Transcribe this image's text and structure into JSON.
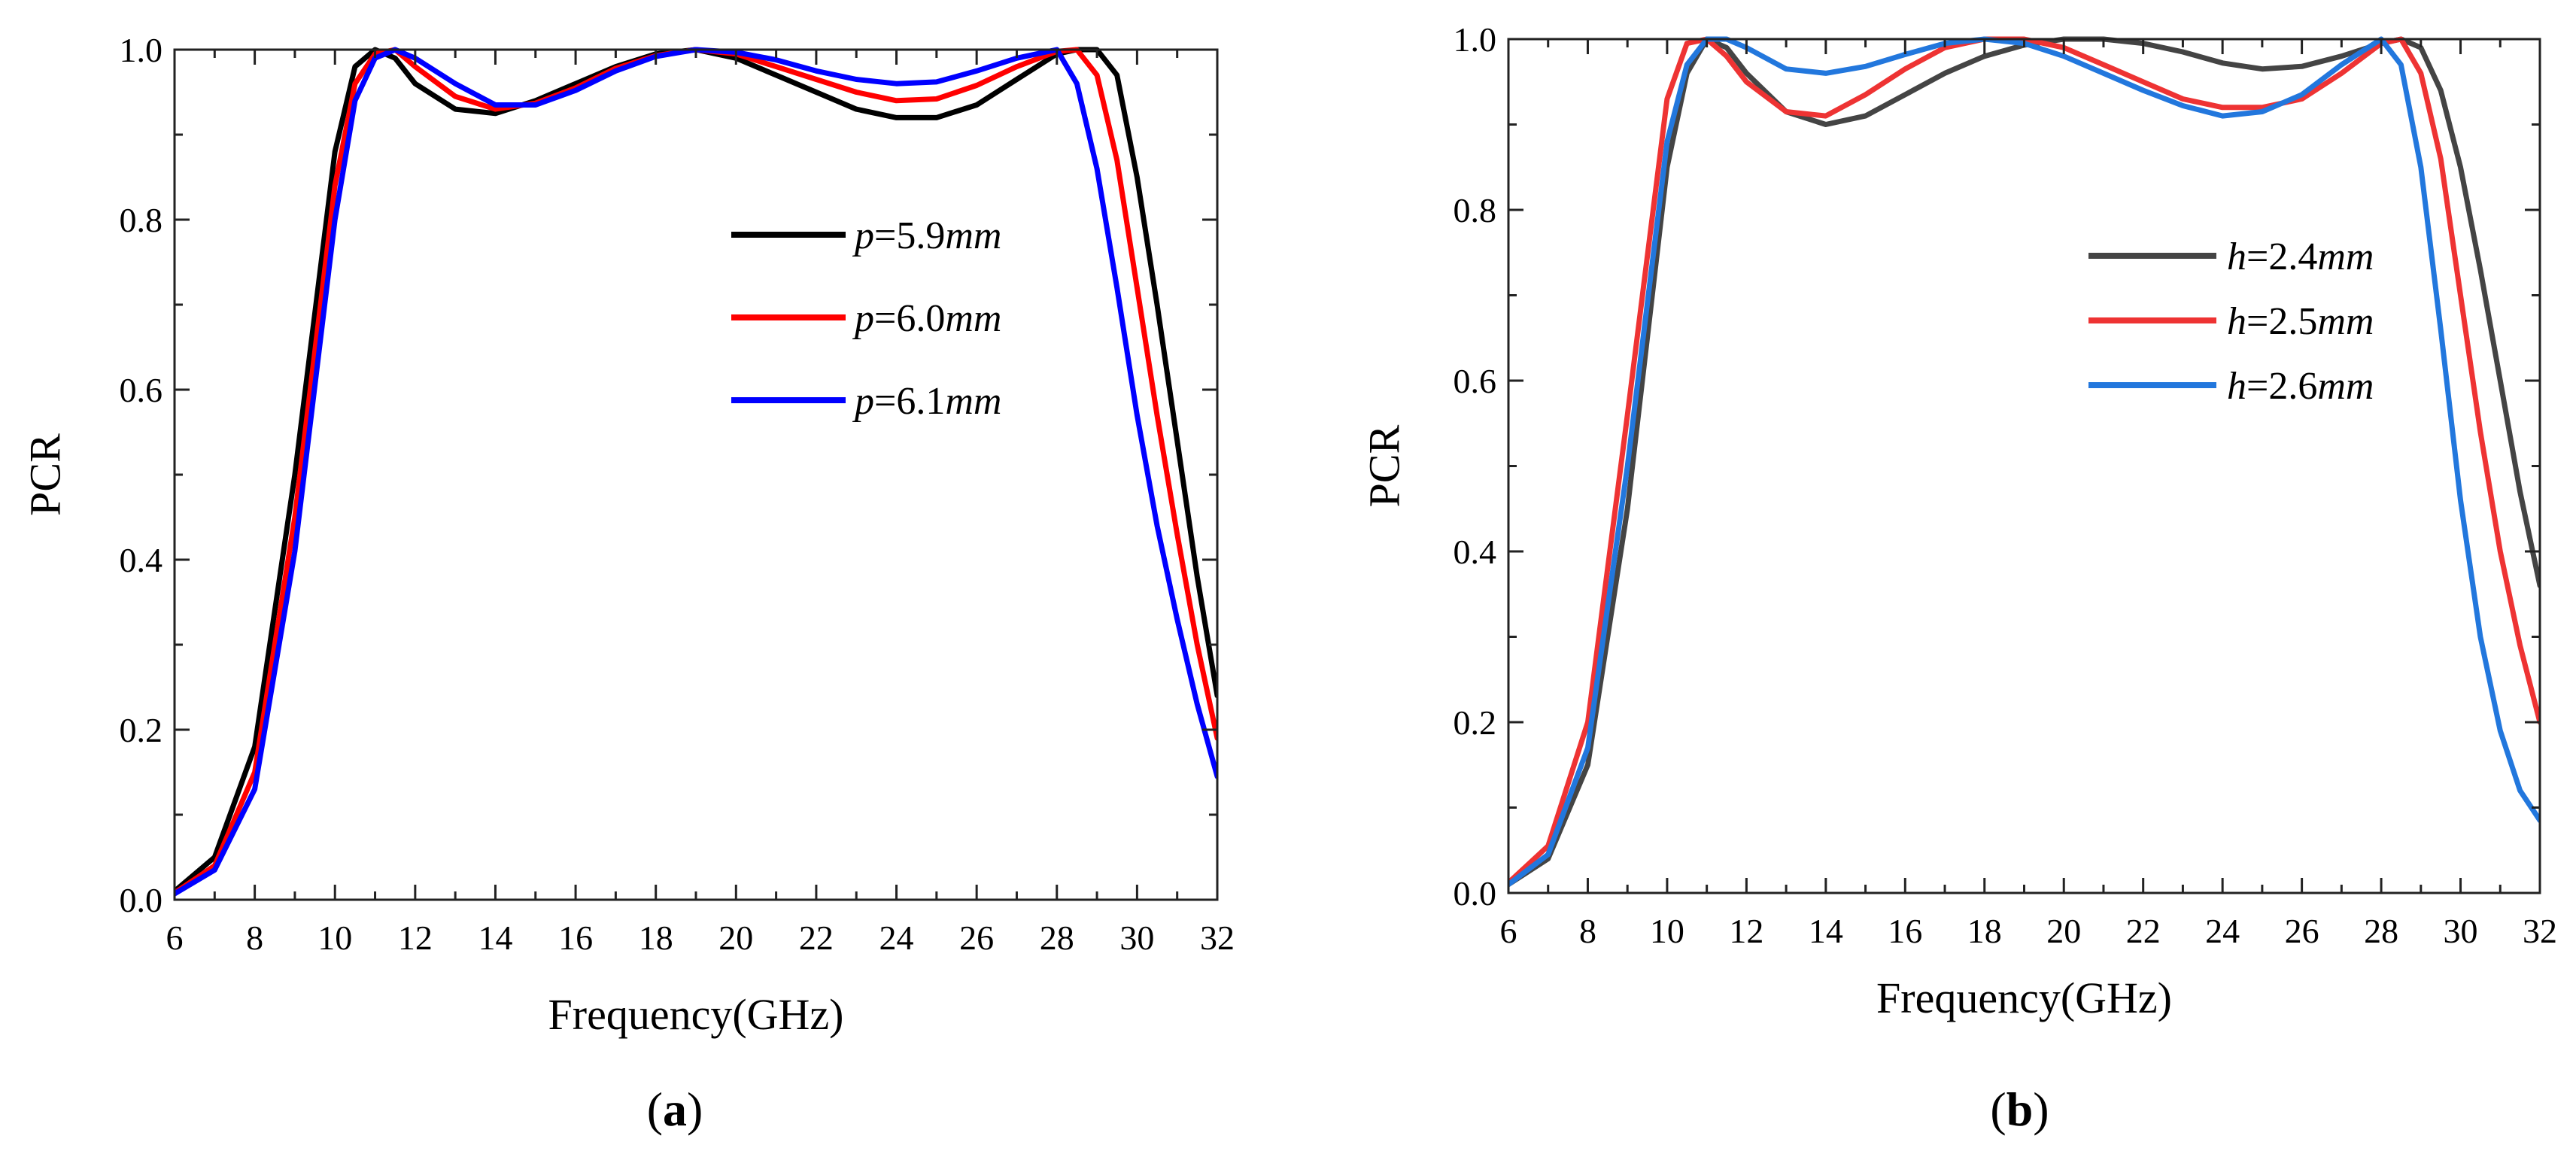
{
  "chart_data": [
    {
      "type": "line",
      "panel_label": "a",
      "xlabel": "Frequency(GHz)",
      "ylabel": "PCR",
      "xlim": [
        6,
        32
      ],
      "ylim": [
        0,
        1
      ],
      "xticks": [
        "6",
        "8",
        "10",
        "12",
        "14",
        "16",
        "18",
        "20",
        "22",
        "24",
        "26",
        "28",
        "30",
        "32"
      ],
      "yticks": [
        "0.0",
        "0.2",
        "0.4",
        "0.6",
        "0.8",
        "1.0"
      ],
      "grid": false,
      "legend_position": "center-right",
      "x": [
        6,
        7,
        8,
        9,
        10,
        10.5,
        11,
        11.5,
        12,
        13,
        14,
        15,
        16,
        17,
        18,
        19,
        20,
        21,
        22,
        23,
        24,
        25,
        26,
        27,
        28,
        28.5,
        29,
        29.5,
        30,
        30.5,
        31,
        31.5,
        32
      ],
      "series": [
        {
          "name": "p=5.9mm",
          "var": "p",
          "val": "=5.9",
          "unit": "mm",
          "color": "#000000",
          "values": [
            0.01,
            0.05,
            0.18,
            0.5,
            0.88,
            0.98,
            1.0,
            0.99,
            0.96,
            0.93,
            0.925,
            0.94,
            0.96,
            0.98,
            0.995,
            1.0,
            0.99,
            0.97,
            0.95,
            0.93,
            0.92,
            0.92,
            0.935,
            0.965,
            0.995,
            1.0,
            1.0,
            0.97,
            0.85,
            0.7,
            0.54,
            0.38,
            0.24
          ]
        },
        {
          "name": "p=6.0mm",
          "var": "p",
          "val": "=6.0",
          "unit": "mm",
          "color": "#ff0000",
          "values": [
            0.008,
            0.04,
            0.15,
            0.45,
            0.84,
            0.96,
            0.995,
            1.0,
            0.98,
            0.945,
            0.93,
            0.937,
            0.955,
            0.978,
            0.993,
            1.0,
            0.995,
            0.98,
            0.965,
            0.95,
            0.94,
            0.942,
            0.958,
            0.98,
            0.998,
            1.0,
            0.97,
            0.87,
            0.72,
            0.57,
            0.43,
            0.3,
            0.19
          ]
        },
        {
          "name": "p=6.1mm",
          "var": "p",
          "val": "=6.1",
          "unit": "mm",
          "color": "#0000ff",
          "values": [
            0.007,
            0.035,
            0.13,
            0.41,
            0.8,
            0.94,
            0.99,
            1.0,
            0.99,
            0.96,
            0.935,
            0.935,
            0.952,
            0.975,
            0.992,
            1.0,
            0.997,
            0.988,
            0.975,
            0.965,
            0.96,
            0.962,
            0.975,
            0.99,
            1.0,
            0.96,
            0.86,
            0.72,
            0.57,
            0.44,
            0.33,
            0.23,
            0.145
          ]
        }
      ]
    },
    {
      "type": "line",
      "panel_label": "b",
      "xlabel": "Frequency(GHz)",
      "ylabel": "PCR",
      "xlim": [
        6,
        32
      ],
      "ylim": [
        0,
        1
      ],
      "xticks": [
        "6",
        "8",
        "10",
        "12",
        "14",
        "16",
        "18",
        "20",
        "22",
        "24",
        "26",
        "28",
        "30",
        "32"
      ],
      "yticks": [
        "0.0",
        "0.2",
        "0.4",
        "0.6",
        "0.8",
        "1.0"
      ],
      "grid": false,
      "legend_position": "center-right",
      "x": [
        6,
        7,
        8,
        9,
        10,
        10.5,
        11,
        11.5,
        12,
        13,
        14,
        15,
        16,
        17,
        18,
        19,
        20,
        21,
        22,
        23,
        24,
        25,
        26,
        27,
        28,
        28.5,
        29,
        29.5,
        30,
        30.5,
        31,
        31.5,
        32
      ],
      "series": [
        {
          "name": "h=2.4mm",
          "var": "h",
          "val": "=2.4",
          "unit": "mm",
          "color": "#444444",
          "values": [
            0.01,
            0.04,
            0.15,
            0.45,
            0.85,
            0.96,
            1.0,
            0.99,
            0.96,
            0.915,
            0.9,
            0.91,
            0.935,
            0.96,
            0.98,
            0.993,
            1.0,
            1.0,
            0.995,
            0.985,
            0.972,
            0.965,
            0.968,
            0.98,
            0.995,
            1.0,
            0.99,
            0.94,
            0.85,
            0.73,
            0.6,
            0.47,
            0.36
          ]
        },
        {
          "name": "h=2.5mm",
          "var": "h",
          "val": "=2.5",
          "unit": "mm",
          "color": "#ee3333",
          "values": [
            0.012,
            0.055,
            0.2,
            0.56,
            0.93,
            0.995,
            1.0,
            0.98,
            0.95,
            0.915,
            0.91,
            0.935,
            0.965,
            0.99,
            1.0,
            1.0,
            0.99,
            0.97,
            0.95,
            0.93,
            0.92,
            0.92,
            0.93,
            0.96,
            0.995,
            1.0,
            0.96,
            0.86,
            0.7,
            0.54,
            0.4,
            0.29,
            0.2
          ]
        },
        {
          "name": "h=2.6mm",
          "var": "h",
          "val": "=2.6",
          "unit": "mm",
          "color": "#2277dd",
          "values": [
            0.01,
            0.045,
            0.17,
            0.5,
            0.88,
            0.97,
            1.0,
            1.0,
            0.99,
            0.965,
            0.96,
            0.968,
            0.982,
            0.995,
            1.0,
            0.995,
            0.98,
            0.96,
            0.94,
            0.922,
            0.91,
            0.915,
            0.935,
            0.97,
            1.0,
            0.97,
            0.85,
            0.66,
            0.46,
            0.3,
            0.19,
            0.12,
            0.085
          ]
        }
      ]
    }
  ]
}
